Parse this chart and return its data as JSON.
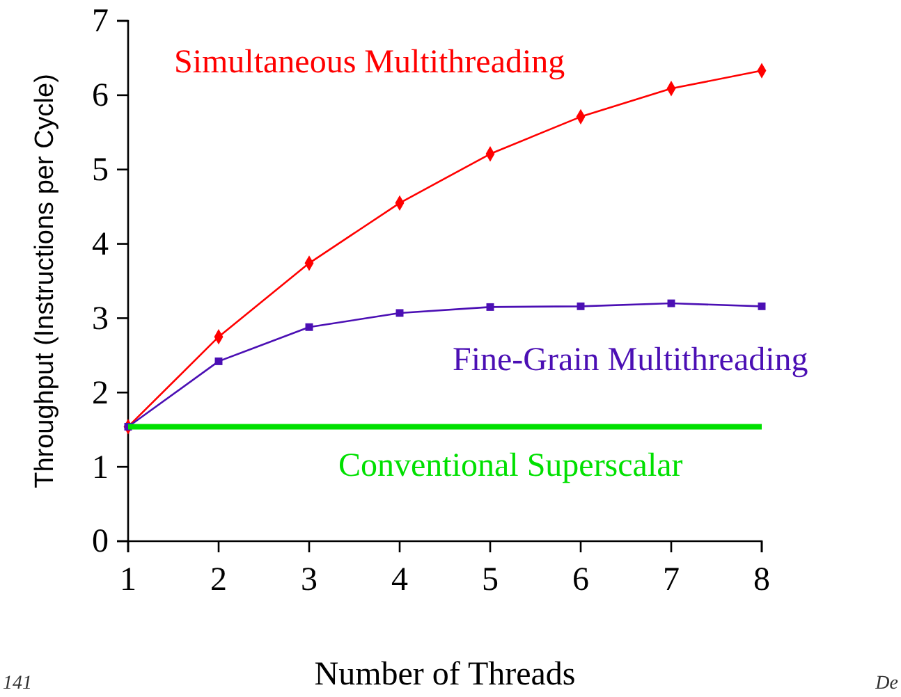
{
  "chart_data": {
    "type": "line",
    "xlabel": "Number of Threads",
    "ylabel": "Throughput (Instructions per Cycle)",
    "x": [
      1,
      2,
      3,
      4,
      5,
      6,
      7,
      8
    ],
    "series": [
      {
        "name": "Simultaneous Multithreading",
        "color": "#ff0000",
        "marker": "diamond",
        "values": [
          1.54,
          2.75,
          3.74,
          4.55,
          5.21,
          5.71,
          6.09,
          6.33
        ]
      },
      {
        "name": "Fine-Grain Multithreading",
        "color": "#4b0fb4",
        "marker": "square",
        "values": [
          1.54,
          2.42,
          2.88,
          3.07,
          3.15,
          3.16,
          3.2,
          3.16
        ]
      },
      {
        "name": "Conventional Superscalar",
        "color": "#00e000",
        "marker": "none",
        "values": [
          1.54,
          1.54,
          1.54,
          1.54,
          1.54,
          1.54,
          1.54,
          1.54
        ]
      }
    ],
    "xlim": [
      1,
      8
    ],
    "xticks": [
      1,
      2,
      3,
      4,
      5,
      6,
      7,
      8
    ],
    "ylim": [
      0,
      7
    ],
    "yticks": [
      0,
      1,
      2,
      3,
      4,
      5,
      6,
      7
    ],
    "grid": false,
    "legend": false,
    "annotations": [
      "141",
      "De"
    ]
  }
}
